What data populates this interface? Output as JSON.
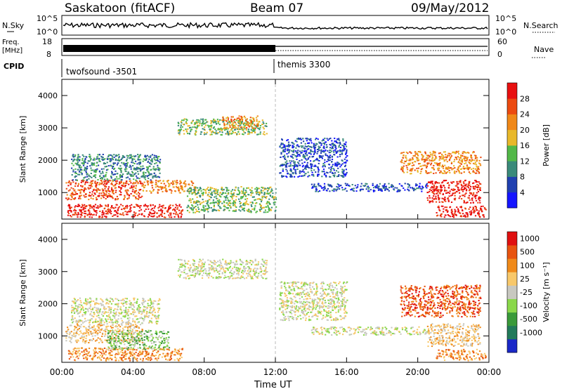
{
  "header": {
    "station": "Saskatoon (fitACF)",
    "beam": "Beam 07",
    "date": "09/May/2012"
  },
  "summary_panels": {
    "nsky_label": "N.Sky",
    "nsky_ticks": [
      "10^5",
      "10^0"
    ],
    "nsearch_label": "N.Search",
    "nsearch_ticks": [
      "10^5",
      "10^0"
    ],
    "freq_label_line1": "Freq.",
    "freq_label_line2": "[MHz]",
    "freq_ticks": [
      "18",
      "8"
    ],
    "nave_label": "Nave",
    "nave_ticks": [
      "60",
      "0"
    ],
    "cpid_label": "CPID",
    "cpid_entries": [
      "twofsound -3501",
      "themis 3300"
    ]
  },
  "time_axis": {
    "label": "Time UT",
    "ticks": [
      "00:00",
      "04:00",
      "08:00",
      "12:00",
      "16:00",
      "20:00",
      "00:00"
    ]
  },
  "chart_data": [
    {
      "type": "heatmap",
      "panel": "power",
      "ylabel": "Slant Range [km]",
      "yticks": [
        1000,
        2000,
        3000,
        4000
      ],
      "ylim": [
        180,
        4500
      ],
      "xlim_hours": [
        0,
        24
      ],
      "colorbar_label": "Power [dB]",
      "colorbar_ticks": [
        "4",
        "8",
        "12",
        "16",
        "20",
        "24",
        "28"
      ],
      "colors": [
        "#1515ff",
        "#2040b0",
        "#3a8a7a",
        "#52b848",
        "#e8b82a",
        "#f08818",
        "#ec4a10",
        "#e81010"
      ],
      "regions": [
        {
          "t": [
            0.3,
            6.8
          ],
          "r": [
            250,
            650
          ],
          "level": 7
        },
        {
          "t": [
            0.2,
            4.5
          ],
          "r": [
            800,
            1400
          ],
          "level": 6
        },
        {
          "t": [
            4.5,
            7.5
          ],
          "r": [
            1000,
            1400
          ],
          "level": 5
        },
        {
          "t": [
            0.5,
            5.5
          ],
          "r": [
            1400,
            2200
          ],
          "level": 2
        },
        {
          "t": [
            7.0,
            12.0
          ],
          "r": [
            400,
            1200
          ],
          "level": 3
        },
        {
          "t": [
            6.5,
            11.5
          ],
          "r": [
            2800,
            3300
          ],
          "level": 3
        },
        {
          "t": [
            9.0,
            11.0
          ],
          "r": [
            3000,
            3400
          ],
          "level": 5
        },
        {
          "t": [
            12.2,
            16.0
          ],
          "r": [
            1500,
            2700
          ],
          "level": 1
        },
        {
          "t": [
            14.0,
            20.5
          ],
          "r": [
            1050,
            1300
          ],
          "level": 1
        },
        {
          "t": [
            19.0,
            23.5
          ],
          "r": [
            1600,
            2300
          ],
          "level": 5
        },
        {
          "t": [
            20.5,
            23.5
          ],
          "r": [
            700,
            1400
          ],
          "level": 7
        },
        {
          "t": [
            21.0,
            23.8
          ],
          "r": [
            250,
            600
          ],
          "level": 7
        }
      ]
    },
    {
      "type": "heatmap",
      "panel": "velocity",
      "ylabel": "Slant Range [km]",
      "yticks": [
        1000,
        2000,
        3000,
        4000
      ],
      "ylim": [
        180,
        4500
      ],
      "xlim_hours": [
        0,
        24
      ],
      "colorbar_label": "Velocity [m s⁻¹]",
      "colorbar_ticks": [
        "1000",
        "500",
        "100",
        "25",
        "-25",
        "-100",
        "-500",
        "-1000"
      ],
      "colors": [
        "#1a28c8",
        "#227a5a",
        "#3a9a3a",
        "#8ad84a",
        "#c8c8c0",
        "#f8c86a",
        "#f08a1a",
        "#e85410",
        "#e01010"
      ],
      "regions": [
        {
          "t": [
            0.3,
            6.8
          ],
          "r": [
            250,
            650
          ],
          "level": 6
        },
        {
          "t": [
            0.2,
            4.5
          ],
          "r": [
            800,
            1400
          ],
          "level": 5
        },
        {
          "t": [
            2.5,
            6.0
          ],
          "r": [
            600,
            1200
          ],
          "level": 3
        },
        {
          "t": [
            0.5,
            5.5
          ],
          "r": [
            1400,
            2200
          ],
          "level": 4
        },
        {
          "t": [
            6.5,
            11.5
          ],
          "r": [
            2800,
            3400
          ],
          "level": 4
        },
        {
          "t": [
            12.2,
            16.0
          ],
          "r": [
            1500,
            2700
          ],
          "level": 4
        },
        {
          "t": [
            14.0,
            20.5
          ],
          "r": [
            1050,
            1300
          ],
          "level": 4
        },
        {
          "t": [
            19.0,
            23.5
          ],
          "r": [
            1600,
            2600
          ],
          "level": 7
        },
        {
          "t": [
            20.5,
            23.5
          ],
          "r": [
            700,
            1400
          ],
          "level": 5
        },
        {
          "t": [
            21.0,
            23.8
          ],
          "r": [
            250,
            600
          ],
          "level": 6
        }
      ]
    }
  ]
}
